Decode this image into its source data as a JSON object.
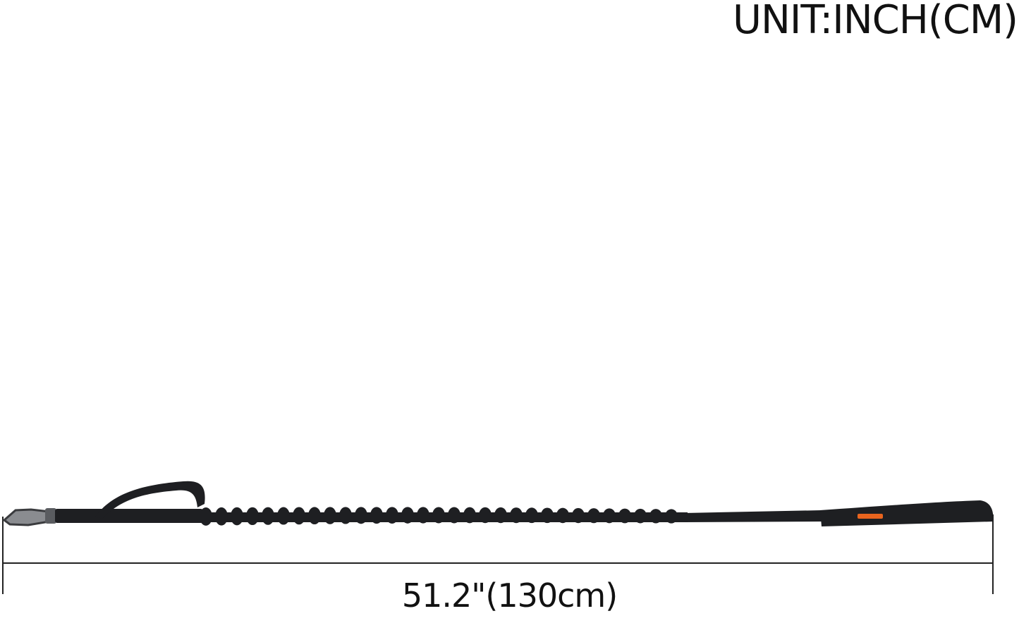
{
  "unit_label": "UNIT:INCH(CM)",
  "length_label": "51.2\"(130cm)",
  "colors": {
    "leash": "#1e1f22",
    "accent_label": "#e8641e",
    "text": "#111111"
  }
}
